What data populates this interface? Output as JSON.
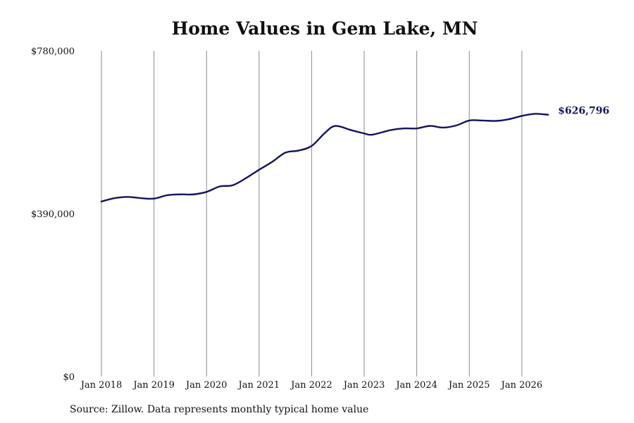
{
  "chart_data": {
    "type": "line",
    "title": "Home Values in Gem Lake, MN",
    "xlabel": "",
    "ylabel": "",
    "ylim": [
      0,
      780000
    ],
    "y_ticks": [
      {
        "value": 780000,
        "label": "$780,000"
      },
      {
        "value": 390000,
        "label": "$390,000"
      },
      {
        "value": 0,
        "label": "$0"
      }
    ],
    "x_ticks": [
      {
        "value": 2018,
        "label": "Jan 2018"
      },
      {
        "value": 2019,
        "label": "Jan 2019"
      },
      {
        "value": 2020,
        "label": "Jan 2020"
      },
      {
        "value": 2021,
        "label": "Jan 2021"
      },
      {
        "value": 2022,
        "label": "Jan 2022"
      },
      {
        "value": 2023,
        "label": "Jan 2023"
      },
      {
        "value": 2024,
        "label": "Jan 2024"
      },
      {
        "value": 2025,
        "label": "Jan 2025"
      },
      {
        "value": 2026,
        "label": "Jan 2026"
      }
    ],
    "grid": "vertical",
    "line_color": "#14145e",
    "end_label": "$626,796",
    "series": [
      {
        "x": [
          2018.0,
          2018.25,
          2018.5,
          2018.75,
          2019.0,
          2019.25,
          2019.5,
          2019.75,
          2020.0,
          2020.25,
          2020.5,
          2020.75,
          2021.0,
          2021.25,
          2021.5,
          2021.75,
          2022.0,
          2022.25,
          2022.45,
          2022.75,
          2023.0,
          2023.15,
          2023.5,
          2023.75,
          2024.0,
          2024.25,
          2024.5,
          2024.75,
          2025.0,
          2025.25,
          2025.5,
          2025.75,
          2026.0,
          2026.25,
          2026.5
        ],
        "y": [
          419000,
          427000,
          430000,
          427000,
          426000,
          434000,
          436000,
          436000,
          442000,
          455000,
          458000,
          475000,
          495000,
          514000,
          536000,
          541000,
          552000,
          583000,
          600000,
          590000,
          582000,
          579000,
          590000,
          594000,
          594000,
          600000,
          596000,
          601000,
          613000,
          613000,
          612000,
          616000,
          624000,
          629000,
          626796
        ]
      }
    ]
  },
  "source_note": "Source: Zillow. Data represents monthly typical home value"
}
